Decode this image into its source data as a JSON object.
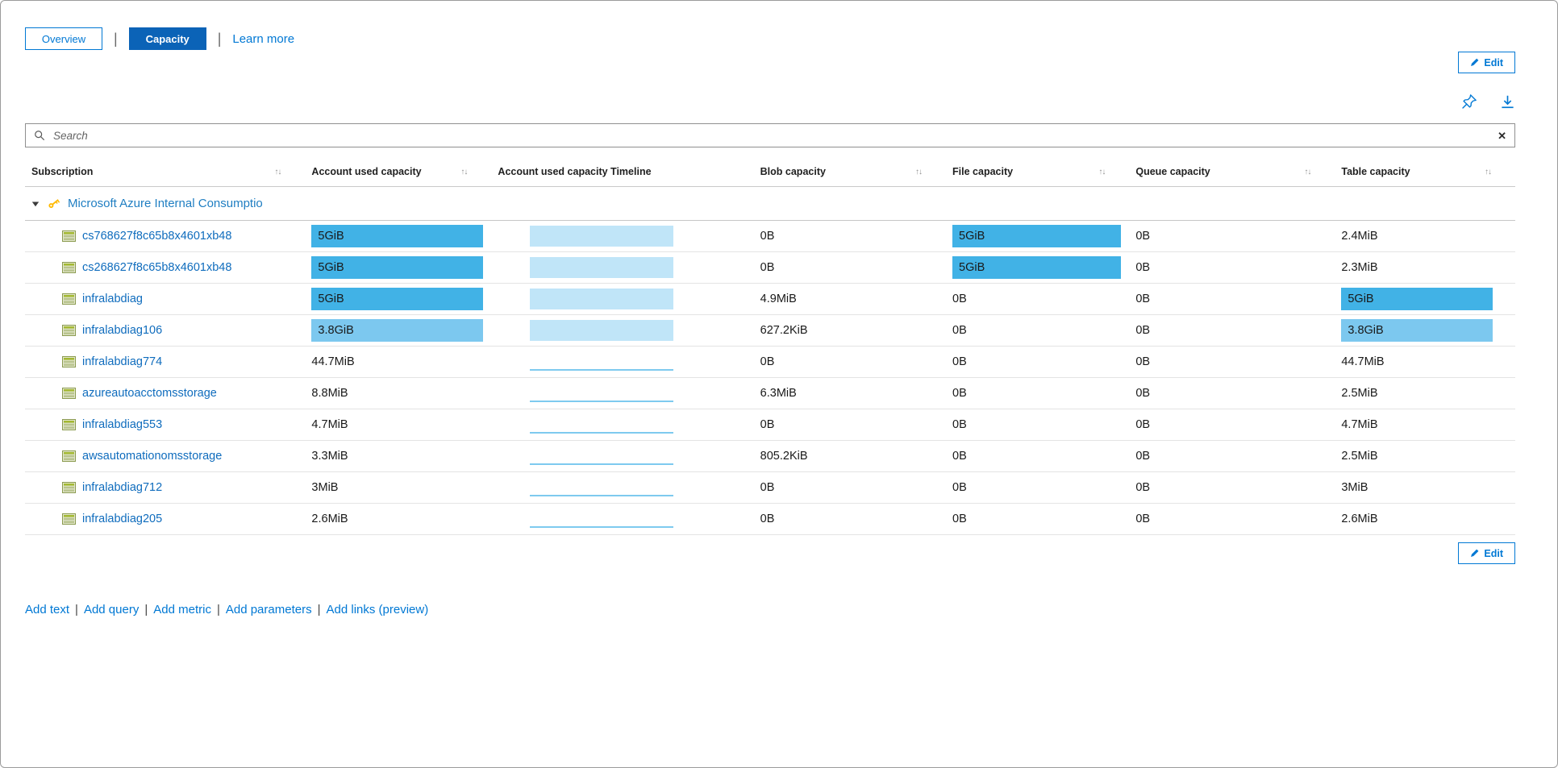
{
  "colors": {
    "accent": "#0078d4",
    "tab_selected_bg": "#0b63b7",
    "link": "#0f6cbd",
    "group_link": "#1f7ec2",
    "heat_high": "#41b2e6",
    "heat_mid": "#7cc8ef",
    "timeline_fill": "#c0e5f8",
    "timeline_line": "#7ecaef"
  },
  "tabs": {
    "overview": "Overview",
    "capacity": "Capacity",
    "learn_more": "Learn more",
    "separator": "|"
  },
  "toolbar": {
    "edit_label": "Edit"
  },
  "search": {
    "placeholder": "Search"
  },
  "icons": {
    "sort": "↑↓",
    "clear": "✕"
  },
  "table": {
    "columns": [
      {
        "label": "Subscription",
        "sortable": true
      },
      {
        "label": "Account used capacity",
        "sortable": true
      },
      {
        "label": "Account used capacity Timeline",
        "sortable": false
      },
      {
        "label": "Blob capacity",
        "sortable": true
      },
      {
        "label": "File capacity",
        "sortable": true
      },
      {
        "label": "Queue capacity",
        "sortable": true
      },
      {
        "label": "Table capacity",
        "sortable": true
      }
    ],
    "group": {
      "label": "Microsoft Azure Internal Consumptio"
    },
    "rows": [
      {
        "name": "cs768627f8c65b8x4601xb48",
        "account": {
          "text": "5GiB",
          "heat": "high"
        },
        "timeline": "area",
        "blob": {
          "text": "0B"
        },
        "file": {
          "text": "5GiB",
          "heat": "high"
        },
        "queue": {
          "text": "0B"
        },
        "table": {
          "text": "2.4MiB"
        }
      },
      {
        "name": "cs268627f8c65b8x4601xb48",
        "account": {
          "text": "5GiB",
          "heat": "high"
        },
        "timeline": "area",
        "blob": {
          "text": "0B"
        },
        "file": {
          "text": "5GiB",
          "heat": "high"
        },
        "queue": {
          "text": "0B"
        },
        "table": {
          "text": "2.3MiB"
        }
      },
      {
        "name": "infralabdiag",
        "account": {
          "text": "5GiB",
          "heat": "high"
        },
        "timeline": "area",
        "blob": {
          "text": "4.9MiB"
        },
        "file": {
          "text": "0B"
        },
        "queue": {
          "text": "0B"
        },
        "table": {
          "text": "5GiB",
          "heat": "high"
        }
      },
      {
        "name": "infralabdiag106",
        "account": {
          "text": "3.8GiB",
          "heat": "mid"
        },
        "timeline": "area",
        "blob": {
          "text": "627.2KiB"
        },
        "file": {
          "text": "0B"
        },
        "queue": {
          "text": "0B"
        },
        "table": {
          "text": "3.8GiB",
          "heat": "mid"
        }
      },
      {
        "name": "infralabdiag774",
        "account": {
          "text": "44.7MiB"
        },
        "timeline": "line",
        "blob": {
          "text": "0B"
        },
        "file": {
          "text": "0B"
        },
        "queue": {
          "text": "0B"
        },
        "table": {
          "text": "44.7MiB"
        }
      },
      {
        "name": "azureautoacctomsstorage",
        "account": {
          "text": "8.8MiB"
        },
        "timeline": "line",
        "blob": {
          "text": "6.3MiB"
        },
        "file": {
          "text": "0B"
        },
        "queue": {
          "text": "0B"
        },
        "table": {
          "text": "2.5MiB"
        }
      },
      {
        "name": "infralabdiag553",
        "account": {
          "text": "4.7MiB"
        },
        "timeline": "line",
        "blob": {
          "text": "0B"
        },
        "file": {
          "text": "0B"
        },
        "queue": {
          "text": "0B"
        },
        "table": {
          "text": "4.7MiB"
        }
      },
      {
        "name": "awsautomationomsstorage",
        "account": {
          "text": "3.3MiB"
        },
        "timeline": "line",
        "blob": {
          "text": "805.2KiB"
        },
        "file": {
          "text": "0B"
        },
        "queue": {
          "text": "0B"
        },
        "table": {
          "text": "2.5MiB"
        }
      },
      {
        "name": "infralabdiag712",
        "account": {
          "text": "3MiB"
        },
        "timeline": "line",
        "blob": {
          "text": "0B"
        },
        "file": {
          "text": "0B"
        },
        "queue": {
          "text": "0B"
        },
        "table": {
          "text": "3MiB"
        }
      },
      {
        "name": "infralabdiag205",
        "account": {
          "text": "2.6MiB"
        },
        "timeline": "line",
        "blob": {
          "text": "0B"
        },
        "file": {
          "text": "0B"
        },
        "queue": {
          "text": "0B"
        },
        "table": {
          "text": "2.6MiB"
        }
      }
    ]
  },
  "footer": {
    "links": [
      "Add text",
      "Add query",
      "Add metric",
      "Add parameters",
      "Add links (preview)"
    ],
    "separator": "|"
  }
}
